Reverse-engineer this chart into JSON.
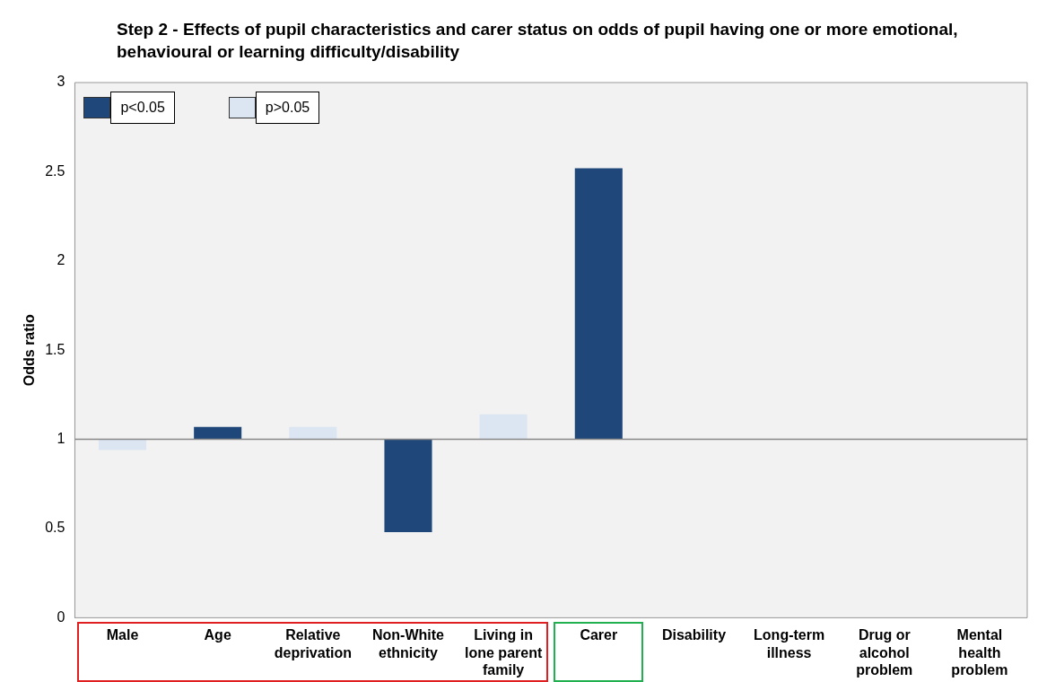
{
  "chart_data": {
    "type": "bar",
    "title": "Step 2 - Effects of pupil characteristics and carer status on odds of pupil having one or more emotional, behavioural or learning difficulty/disability",
    "ylabel": "Odds ratio",
    "categories": [
      "Male",
      "Age",
      "Relative deprivation",
      "Non-White ethnicity",
      "Living in lone parent family",
      "Carer",
      "Disability",
      "Long-term illness",
      "Drug or alcohol problem",
      "Mental health problem"
    ],
    "series": [
      {
        "name": "p<0.05",
        "color": "#1f477a",
        "base": [
          null,
          1,
          null,
          1,
          null,
          1,
          null,
          null,
          null,
          null
        ],
        "values": [
          null,
          0.07,
          null,
          -0.52,
          null,
          1.52,
          null,
          null,
          null,
          null
        ]
      },
      {
        "name": "p>0.05",
        "color": "#dce6f2",
        "base": [
          1,
          null,
          1,
          null,
          1,
          null,
          null,
          null,
          null,
          null
        ],
        "values": [
          -0.06,
          null,
          0.07,
          null,
          0.14,
          null,
          null,
          null,
          null,
          null
        ]
      }
    ],
    "ylim": [
      0,
      3
    ],
    "yticks": [
      0,
      0.5,
      1,
      1.5,
      2,
      2.5,
      3
    ],
    "ref_lines": [
      {
        "axis": "y",
        "value": 1
      }
    ],
    "legend": "top left",
    "grid": false
  }
}
